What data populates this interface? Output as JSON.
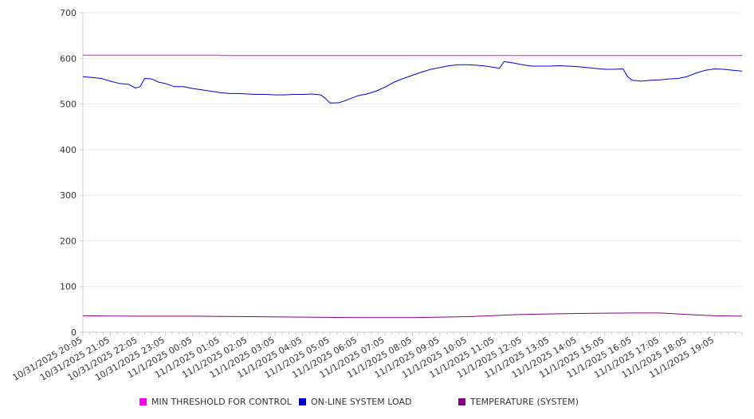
{
  "chart_data": {
    "type": "line",
    "title": "",
    "xlabel": "",
    "ylabel": "",
    "ylim": [
      0,
      700
    ],
    "yticks": [
      0,
      100,
      200,
      300,
      400,
      500,
      600,
      700
    ],
    "grid": "horizontal",
    "legend_position": "bottom",
    "x_start": "10/31/2025 20:05",
    "x_end": "11/1/2025 20:05",
    "x_tick_labels": [
      "10/31/2025 20:05",
      "10/31/2025 21:05",
      "10/31/2025 22:05",
      "10/31/2025 23:05",
      "11/1/2025 00:05",
      "11/1/2025 01:05",
      "11/1/2025 02:05",
      "11/1/2025 03:05",
      "11/1/2025 04:05",
      "11/1/2025 05:05",
      "11/1/2025 06:05",
      "11/1/2025 07:05",
      "11/1/2025 08:05",
      "11/1/2025 09:05",
      "11/1/2025 10:05",
      "11/1/2025 11:05",
      "11/1/2025 12:05",
      "11/1/2025 13:05",
      "11/1/2025 14:05",
      "11/1/2025 15:05",
      "11/1/2025 16:05",
      "11/1/2025 17:05",
      "11/1/2025 18:05",
      "11/1/2025 19:05"
    ],
    "series": [
      {
        "name": "MIN THRESHOLD FOR CONTROL",
        "color": "#ff00ff",
        "points": [
          [
            "10/31/2025 20:05",
            607
          ],
          [
            "10/31/2025 22:05",
            607
          ],
          [
            "11/1/2025 00:05",
            607
          ],
          [
            "11/1/2025 01:05",
            607
          ],
          [
            "11/1/2025 01:10",
            606
          ],
          [
            "11/1/2025 06:05",
            606
          ],
          [
            "11/1/2025 12:05",
            606
          ],
          [
            "11/1/2025 18:05",
            606
          ],
          [
            "11/1/2025 20:05",
            606
          ]
        ]
      },
      {
        "name": "ON-LINE SYSTEM LOAD",
        "color": "#0000cc",
        "points": [
          [
            "10/31/2025 20:05",
            560
          ],
          [
            "10/31/2025 20:25",
            558
          ],
          [
            "10/31/2025 20:45",
            556
          ],
          [
            "10/31/2025 21:05",
            550
          ],
          [
            "10/31/2025 21:25",
            545
          ],
          [
            "10/31/2025 21:45",
            543
          ],
          [
            "10/31/2025 22:00",
            535
          ],
          [
            "10/31/2025 22:10",
            538
          ],
          [
            "10/31/2025 22:20",
            556
          ],
          [
            "10/31/2025 22:35",
            555
          ],
          [
            "10/31/2025 22:50",
            548
          ],
          [
            "10/31/2025 23:05",
            545
          ],
          [
            "10/31/2025 23:25",
            538
          ],
          [
            "10/31/2025 23:45",
            538
          ],
          [
            "11/1/2025 00:05",
            534
          ],
          [
            "11/1/2025 00:25",
            531
          ],
          [
            "11/1/2025 00:45",
            528
          ],
          [
            "11/1/2025 01:05",
            525
          ],
          [
            "11/1/2025 01:25",
            523
          ],
          [
            "11/1/2025 01:45",
            523
          ],
          [
            "11/1/2025 02:05",
            522
          ],
          [
            "11/1/2025 02:25",
            521
          ],
          [
            "11/1/2025 02:45",
            521
          ],
          [
            "11/1/2025 03:05",
            520
          ],
          [
            "11/1/2025 03:25",
            520
          ],
          [
            "11/1/2025 03:45",
            521
          ],
          [
            "11/1/2025 04:05",
            521
          ],
          [
            "11/1/2025 04:25",
            522
          ],
          [
            "11/1/2025 04:45",
            520
          ],
          [
            "11/1/2025 04:55",
            512
          ],
          [
            "11/1/2025 05:05",
            502
          ],
          [
            "11/1/2025 05:25",
            503
          ],
          [
            "11/1/2025 05:45",
            510
          ],
          [
            "11/1/2025 06:05",
            518
          ],
          [
            "11/1/2025 06:25",
            522
          ],
          [
            "11/1/2025 06:45",
            528
          ],
          [
            "11/1/2025 07:05",
            537
          ],
          [
            "11/1/2025 07:25",
            548
          ],
          [
            "11/1/2025 07:45",
            556
          ],
          [
            "11/1/2025 08:05",
            563
          ],
          [
            "11/1/2025 08:25",
            570
          ],
          [
            "11/1/2025 08:45",
            576
          ],
          [
            "11/1/2025 09:05",
            580
          ],
          [
            "11/1/2025 09:25",
            584
          ],
          [
            "11/1/2025 09:45",
            586
          ],
          [
            "11/1/2025 10:05",
            586
          ],
          [
            "11/1/2025 10:25",
            585
          ],
          [
            "11/1/2025 10:45",
            583
          ],
          [
            "11/1/2025 11:05",
            580
          ],
          [
            "11/1/2025 11:15",
            578
          ],
          [
            "11/1/2025 11:25",
            593
          ],
          [
            "11/1/2025 11:45",
            590
          ],
          [
            "11/1/2025 12:05",
            586
          ],
          [
            "11/1/2025 12:25",
            583
          ],
          [
            "11/1/2025 12:45",
            583
          ],
          [
            "11/1/2025 13:05",
            583
          ],
          [
            "11/1/2025 13:25",
            584
          ],
          [
            "11/1/2025 13:45",
            583
          ],
          [
            "11/1/2025 14:05",
            582
          ],
          [
            "11/1/2025 14:25",
            580
          ],
          [
            "11/1/2025 14:45",
            578
          ],
          [
            "11/1/2025 15:05",
            576
          ],
          [
            "11/1/2025 15:25",
            576
          ],
          [
            "11/1/2025 15:45",
            577
          ],
          [
            "11/1/2025 15:55",
            560
          ],
          [
            "11/1/2025 16:05",
            552
          ],
          [
            "11/1/2025 16:25",
            550
          ],
          [
            "11/1/2025 16:45",
            552
          ],
          [
            "11/1/2025 17:05",
            553
          ],
          [
            "11/1/2025 17:25",
            555
          ],
          [
            "11/1/2025 17:45",
            556
          ],
          [
            "11/1/2025 18:05",
            560
          ],
          [
            "11/1/2025 18:25",
            568
          ],
          [
            "11/1/2025 18:45",
            574
          ],
          [
            "11/1/2025 19:05",
            577
          ],
          [
            "11/1/2025 19:25",
            576
          ],
          [
            "11/1/2025 19:45",
            574
          ],
          [
            "11/1/2025 20:05",
            572
          ]
        ]
      },
      {
        "name": "TEMPERATURE (SYSTEM)",
        "color": "#800080",
        "points": [
          [
            "10/31/2025 20:05",
            36
          ],
          [
            "10/31/2025 22:05",
            35
          ],
          [
            "11/1/2025 00:05",
            35
          ],
          [
            "11/1/2025 02:05",
            34
          ],
          [
            "11/1/2025 04:05",
            33
          ],
          [
            "11/1/2025 06:05",
            32
          ],
          [
            "11/1/2025 08:05",
            32
          ],
          [
            "11/1/2025 10:05",
            34
          ],
          [
            "11/1/2025 12:05",
            39
          ],
          [
            "11/1/2025 14:05",
            41
          ],
          [
            "11/1/2025 16:05",
            42
          ],
          [
            "11/1/2025 17:05",
            42
          ],
          [
            "11/1/2025 18:05",
            39
          ],
          [
            "11/1/2025 19:05",
            36
          ],
          [
            "11/1/2025 20:05",
            35
          ]
        ]
      }
    ]
  }
}
